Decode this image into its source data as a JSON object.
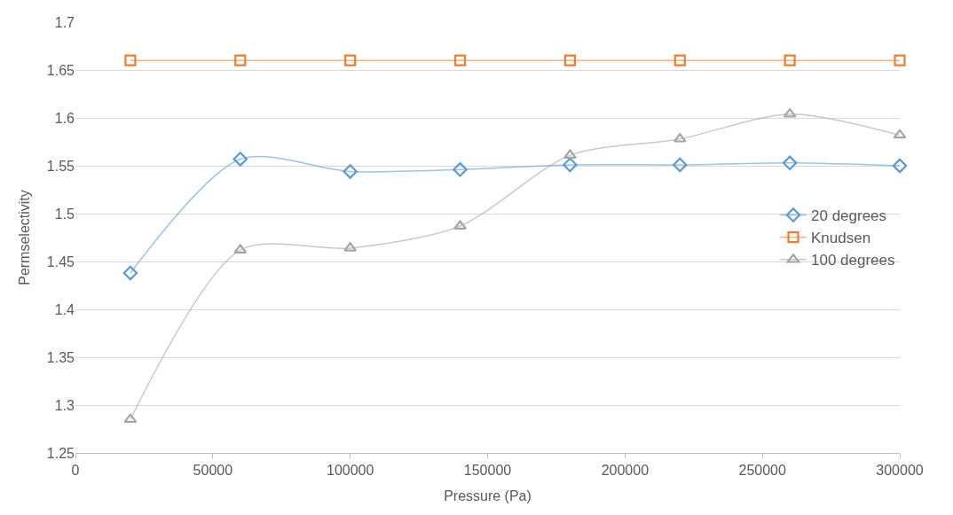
{
  "chart_data": {
    "type": "line",
    "xlabel": "Pressure (Pa)",
    "ylabel": "Permselectivity",
    "x": [
      20000,
      60000,
      100000,
      140000,
      180000,
      220000,
      260000,
      300000
    ],
    "xlim": [
      0,
      300000
    ],
    "xticks": [
      0,
      50000,
      100000,
      150000,
      200000,
      250000,
      300000
    ],
    "ylim": [
      1.25,
      1.7
    ],
    "yticks": [
      1.25,
      1.3,
      1.35,
      1.4,
      1.45,
      1.5,
      1.55,
      1.6,
      1.65,
      1.7
    ],
    "grid": "y",
    "legend": "right",
    "line_style": "solid",
    "series": [
      {
        "name": "20 degrees",
        "color": "#5b9bd5",
        "marker": "diamond",
        "values": [
          1.438,
          1.557,
          1.544,
          1.546,
          1.551,
          1.551,
          1.553,
          1.55
        ]
      },
      {
        "name": "Knudsen",
        "color": "#ed7d31",
        "marker": "square",
        "values": [
          1.66,
          1.66,
          1.66,
          1.66,
          1.66,
          1.66,
          1.66,
          1.66
        ]
      },
      {
        "name": "100 degrees",
        "color": "#a5a5a5",
        "marker": "triangle",
        "values": [
          1.285,
          1.462,
          1.464,
          1.487,
          1.561,
          1.578,
          1.604,
          1.582
        ]
      }
    ]
  }
}
